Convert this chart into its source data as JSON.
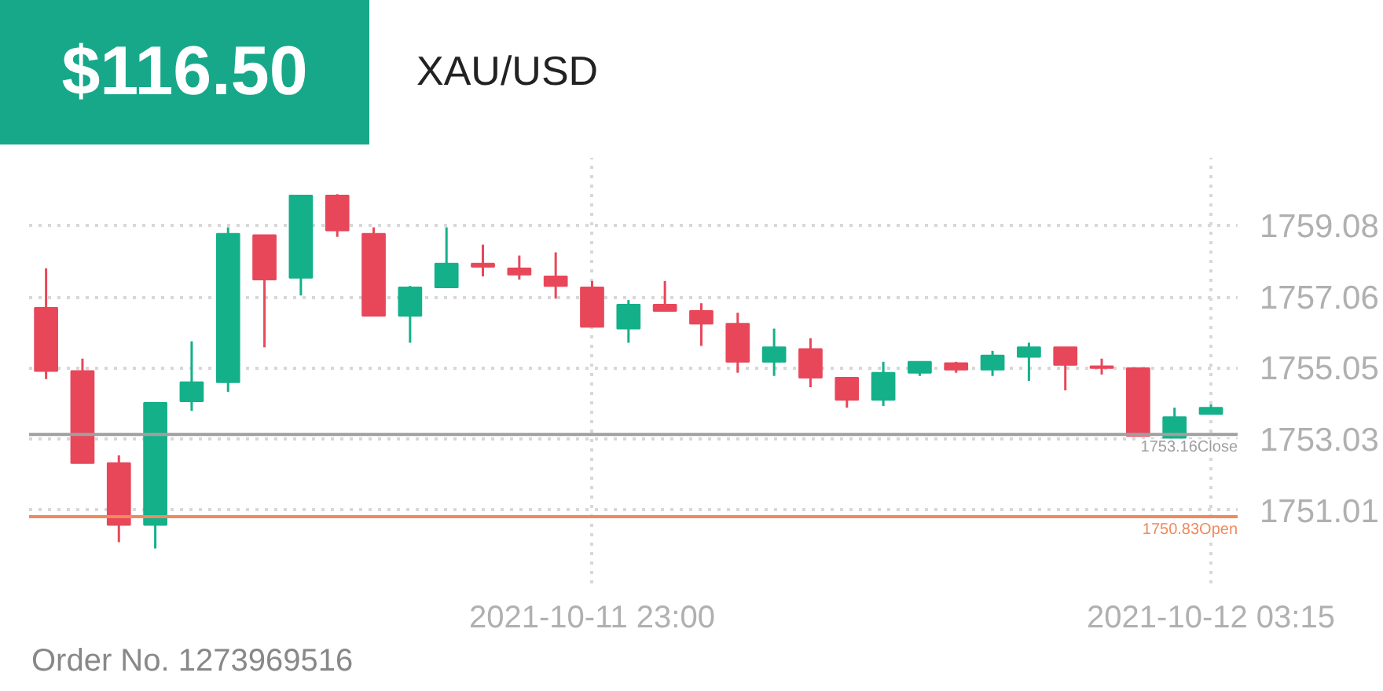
{
  "chart_data": {
    "type": "candlestick",
    "title": "XAU/USD",
    "annotations": [
      "$116.50",
      "Order No. 1273969516"
    ],
    "x": [
      "2021-10-11T19:15",
      "2021-10-11T19:30",
      "2021-10-11T19:45",
      "2021-10-11T20:00",
      "2021-10-11T20:15",
      "2021-10-11T20:30",
      "2021-10-11T20:45",
      "2021-10-11T21:00",
      "2021-10-11T21:15",
      "2021-10-11T21:30",
      "2021-10-11T21:45",
      "2021-10-11T22:00",
      "2021-10-11T22:15",
      "2021-10-11T22:30",
      "2021-10-11T22:45",
      "2021-10-11T23:00",
      "2021-10-11T23:15",
      "2021-10-11T23:30",
      "2021-10-11T23:45",
      "2021-10-12T00:00",
      "2021-10-12T00:15",
      "2021-10-12T00:30",
      "2021-10-12T00:45",
      "2021-10-12T01:00",
      "2021-10-12T01:15",
      "2021-10-12T01:30",
      "2021-10-12T01:45",
      "2021-10-12T02:00",
      "2021-10-12T02:15",
      "2021-10-12T02:30",
      "2021-10-12T02:45",
      "2021-10-12T03:00",
      "2021-10-12T03:15"
    ],
    "ohlc": [
      [
        1756.75,
        1757.87,
        1754.73,
        1754.96
      ],
      [
        1754.96,
        1755.31,
        1752.35,
        1752.35
      ],
      [
        1752.35,
        1752.57,
        1750.11,
        1750.6
      ],
      [
        1750.6,
        1754.06,
        1749.93,
        1754.06
      ],
      [
        1754.1,
        1755.8,
        1753.83,
        1754.64
      ],
      [
        1754.64,
        1759.03,
        1754.37,
        1758.85
      ],
      [
        1758.81,
        1758.81,
        1755.63,
        1757.55
      ],
      [
        1757.6,
        1759.93,
        1757.1,
        1759.93
      ],
      [
        1759.93,
        1759.97,
        1758.76,
        1758.94
      ],
      [
        1758.85,
        1759.03,
        1756.52,
        1756.52
      ],
      [
        1756.52,
        1757.37,
        1755.76,
        1757.33
      ],
      [
        1757.33,
        1759.03,
        1757.33,
        1758.0
      ],
      [
        1758.0,
        1758.54,
        1757.64,
        1757.91
      ],
      [
        1757.87,
        1758.23,
        1757.55,
        1757.69
      ],
      [
        1757.64,
        1758.32,
        1757.01,
        1757.37
      ],
      [
        1757.33,
        1757.51,
        1756.21,
        1756.21
      ],
      [
        1756.16,
        1756.97,
        1755.76,
        1756.84
      ],
      [
        1756.84,
        1757.51,
        1756.66,
        1756.66
      ],
      [
        1756.66,
        1756.88,
        1755.67,
        1756.3
      ],
      [
        1756.3,
        1756.61,
        1754.91,
        1755.22
      ],
      [
        1755.22,
        1756.16,
        1754.82,
        1755.63
      ],
      [
        1755.58,
        1755.89,
        1754.5,
        1754.77
      ],
      [
        1754.77,
        1754.77,
        1753.92,
        1754.14
      ],
      [
        1754.14,
        1755.22,
        1753.97,
        1754.91
      ],
      [
        1754.91,
        1755.22,
        1754.82,
        1755.22
      ],
      [
        1755.18,
        1755.22,
        1754.91,
        1755.0
      ],
      [
        1755.0,
        1755.53,
        1754.82,
        1755.4
      ],
      [
        1755.36,
        1755.76,
        1754.68,
        1755.63
      ],
      [
        1755.63,
        1755.63,
        1754.41,
        1755.13
      ],
      [
        1755.09,
        1755.31,
        1754.86,
        1755.04
      ],
      [
        1755.04,
        1755.04,
        1753.12,
        1753.12
      ],
      [
        1753.07,
        1753.92,
        1753.07,
        1753.65
      ],
      [
        1753.74,
        1754.01,
        1753.74,
        1753.92
      ]
    ],
    "colors": [
      "#e8475a",
      "#e8475a",
      "#e8475a",
      "#14b08a",
      "#14b08a",
      "#14b08a",
      "#e8475a",
      "#14b08a",
      "#e8475a",
      "#e8475a",
      "#14b08a",
      "#14b08a",
      "#e8475a",
      "#e8475a",
      "#e8475a",
      "#e8475a",
      "#14b08a",
      "#e8475a",
      "#e8475a",
      "#e8475a",
      "#14b08a",
      "#e8475a",
      "#e8475a",
      "#14b08a",
      "#14b08a",
      "#e8475a",
      "#14b08a",
      "#14b08a",
      "#e8475a",
      "#e8475a",
      "#e8475a",
      "#14b08a",
      "#14b08a"
    ],
    "xlim": [
      "2021-10-11T19:08",
      "2021-10-12T03:26"
    ],
    "xticks": [
      {
        "value": "2021-10-11T23:00",
        "label": "2021-10-11 23:00"
      },
      {
        "value": "2021-10-12T03:15",
        "label": "2021-10-12 03:15"
      }
    ],
    "ylim": [
      1748.94,
      1761.0
    ],
    "yticks": [
      1759.08,
      1757.06,
      1755.05,
      1753.03,
      1751.01
    ],
    "ref_lines": [
      {
        "axis": "y",
        "value": 1753.16,
        "label": "1753.16Close",
        "color": "#a0a0a0"
      },
      {
        "axis": "y",
        "value": 1750.83,
        "label": "1750.83Open",
        "color": "#f08a5d"
      }
    ],
    "grid": true
  }
}
